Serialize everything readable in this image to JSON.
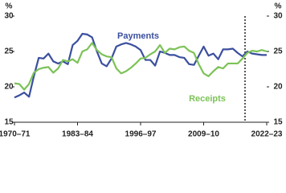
{
  "chart_data": {
    "type": "line",
    "y_unit": "%",
    "categories": [
      "1970–71",
      null,
      null,
      null,
      null,
      null,
      null,
      null,
      null,
      null,
      null,
      null,
      null,
      "1983–84",
      null,
      null,
      null,
      null,
      null,
      null,
      null,
      null,
      null,
      null,
      null,
      null,
      "1996–97",
      null,
      null,
      null,
      null,
      null,
      null,
      null,
      null,
      null,
      null,
      null,
      null,
      "2009–10",
      null,
      null,
      null,
      null,
      null,
      null,
      null,
      null,
      null,
      null,
      null,
      null,
      "2022–23"
    ],
    "series": [
      {
        "name": "Payments",
        "color": "#3b4f9e",
        "values": [
          18.5,
          18.8,
          19.2,
          18.6,
          21.5,
          24.1,
          24.0,
          24.7,
          23.6,
          23.3,
          23.6,
          23.2,
          25.9,
          26.5,
          27.5,
          27.4,
          27.0,
          25.0,
          23.3,
          22.9,
          24.0,
          25.7,
          26.0,
          26.2,
          26.0,
          25.7,
          25.2,
          23.8,
          23.8,
          23.0,
          25.0,
          24.8,
          24.5,
          24.5,
          24.2,
          24.1,
          23.2,
          23.1,
          24.4,
          25.7,
          24.4,
          24.7,
          23.9,
          25.3,
          25.3,
          25.4,
          24.8,
          24.3,
          25.0,
          24.7,
          24.6,
          24.5,
          24.5
        ]
      },
      {
        "name": "Receipts",
        "color": "#7cc257",
        "values": [
          20.5,
          20.4,
          19.6,
          20.4,
          22.0,
          22.5,
          22.7,
          22.8,
          22.0,
          22.6,
          23.8,
          23.6,
          23.9,
          23.4,
          25.0,
          25.3,
          26.2,
          25.2,
          24.6,
          24.3,
          24.2,
          22.6,
          21.9,
          22.2,
          22.7,
          23.3,
          24.0,
          24.1,
          24.6,
          25.0,
          25.9,
          24.8,
          25.4,
          25.3,
          25.6,
          25.7,
          25.1,
          24.8,
          23.2,
          21.9,
          21.5,
          22.2,
          22.8,
          22.6,
          23.3,
          23.3,
          23.3,
          24.0,
          24.8,
          25.1,
          25.0,
          25.2,
          25.0
        ]
      }
    ],
    "ylim": [
      15,
      30
    ],
    "yticks": [
      15,
      20,
      25,
      30
    ],
    "y2lim": [
      15,
      30
    ],
    "y2ticks": [
      15,
      20,
      25,
      30
    ],
    "grid": false
  }
}
